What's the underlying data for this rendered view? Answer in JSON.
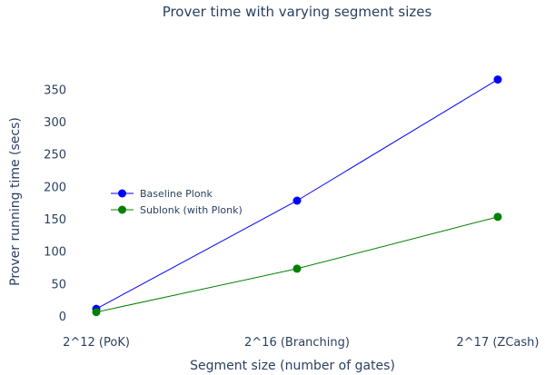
{
  "chart_data": {
    "type": "line",
    "title": "Prover time with varying segment sizes",
    "xlabel": "Segment size (number of gates)",
    "ylabel": "Prover running time (secs)",
    "categories": [
      "2^12 (PoK)",
      "2^16 (Branching)",
      "2^17 (ZCash)"
    ],
    "yticks": [
      0,
      50,
      100,
      150,
      200,
      250,
      300,
      350
    ],
    "ylim": [
      -10,
      375
    ],
    "grid": false,
    "legend_position": "left-center",
    "series": [
      {
        "name": "Baseline Plonk",
        "color": "#0000ff",
        "values": [
          11,
          178,
          365
        ]
      },
      {
        "name": "Sublonk (with Plonk)",
        "color": "#008000",
        "values": [
          6,
          73,
          153
        ]
      }
    ]
  }
}
